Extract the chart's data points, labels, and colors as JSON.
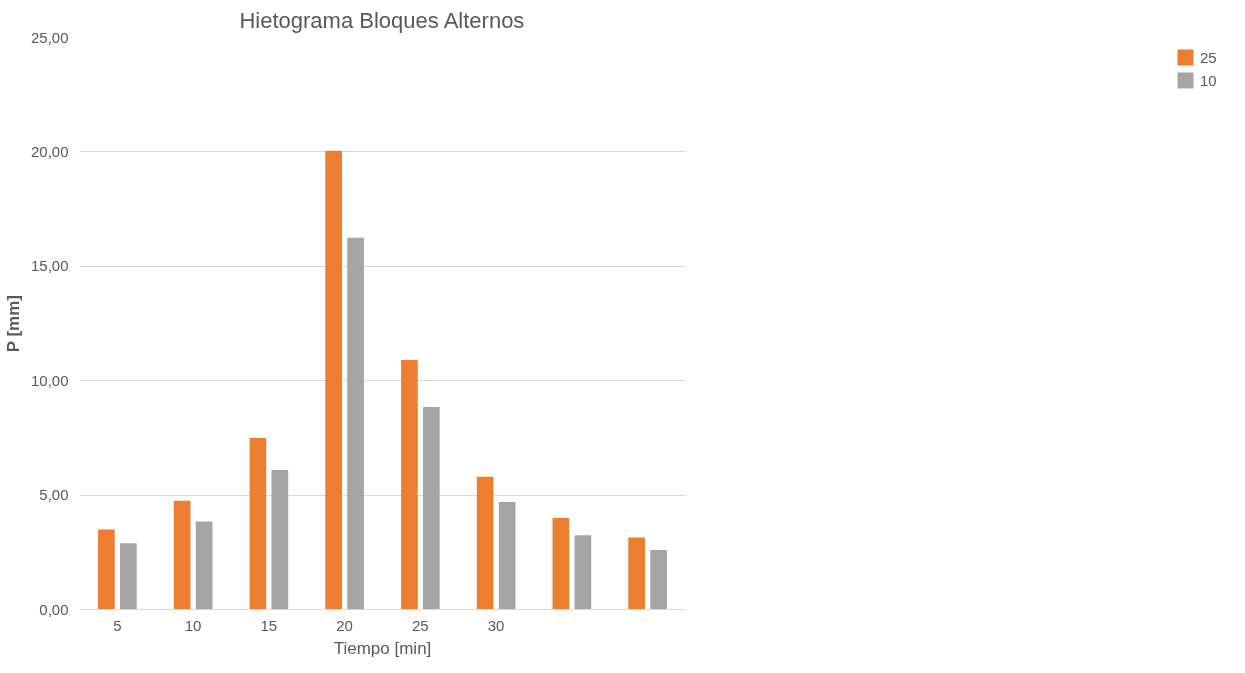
{
  "chart_data": {
    "type": "bar",
    "title": "Hietograma Bloques Alternos",
    "xlabel": "Tiempo [min]",
    "ylabel": "P [mm]",
    "categories": [
      "5",
      "10",
      "15",
      "20",
      "25",
      "30",
      null,
      null
    ],
    "series": [
      {
        "name": "25",
        "color": "#ed7d31",
        "values": [
          3.5,
          4.75,
          7.5,
          20.05,
          10.9,
          5.8,
          4.0,
          3.15
        ]
      },
      {
        "name": "10",
        "color": "#a5a5a5",
        "values": [
          2.9,
          3.85,
          6.1,
          16.25,
          8.85,
          4.7,
          3.25,
          2.6
        ]
      }
    ],
    "ylim": [
      0,
      25
    ],
    "yticks": [
      {
        "value": 0,
        "label": "0,00"
      },
      {
        "value": 5,
        "label": "5,00"
      },
      {
        "value": 10,
        "label": "10,00"
      },
      {
        "value": 15,
        "label": "15,00"
      },
      {
        "value": 20,
        "label": "20,00"
      },
      {
        "value": 25,
        "label": "25,00"
      }
    ],
    "grid": "y",
    "legend": "right"
  }
}
